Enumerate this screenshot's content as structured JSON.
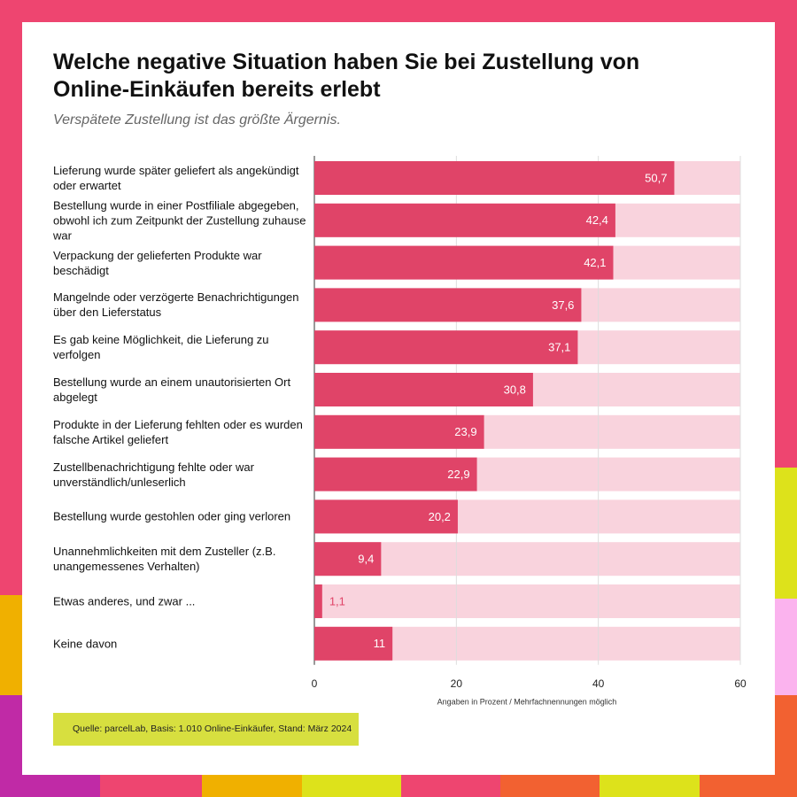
{
  "chart_data": {
    "type": "bar",
    "orientation": "horizontal",
    "title": "Welche negative Situation haben Sie bei Zustellung von Online-Einkäufen bereits erlebt",
    "subtitle": "Verspätete Zustellung ist das größte Ärgernis.",
    "categories": [
      "Lieferung wurde später geliefert als angekündigt oder erwartet",
      "Bestellung wurde in einer Postfiliale abgegeben, obwohl ich zum Zeitpunkt der Zustellung zuhause war",
      "Verpackung der gelieferten Produkte war beschädigt",
      "Mangelnde oder verzögerte Benachrichtigungen über den Lieferstatus",
      "Es gab keine Möglichkeit, die Lieferung zu verfolgen",
      "Bestellung wurde an einem unautorisierten Ort abgelegt",
      "Produkte in der Lieferung fehlten oder es wurden falsche Artikel geliefert",
      "Zustellbenachrichtigung fehlte oder war unverständlich/unleserlich",
      "Bestellung wurde gestohlen oder ging verloren",
      "Unannehmlichkeiten mit dem Zusteller (z.B. unangemessenes Verhalten)",
      "Etwas anderes, und zwar ...",
      "Keine davon"
    ],
    "values": [
      50.7,
      42.4,
      42.1,
      37.6,
      37.1,
      30.8,
      23.9,
      22.9,
      20.2,
      9.4,
      1.1,
      11
    ],
    "value_labels": [
      "50,7",
      "42,4",
      "42,1",
      "37,6",
      "37,1",
      "30,8",
      "23,9",
      "22,9",
      "20,2",
      "9,4",
      "1,1",
      "11"
    ],
    "color": "#e04468",
    "track_color": "#f9d3dd",
    "xlim": [
      0,
      60
    ],
    "xticks": [
      0,
      20,
      40,
      60
    ],
    "grid": true,
    "x_label": "Angaben in Prozent / Mehrfachnennungen möglich",
    "source": "Quelle: parcelLab, Basis: 1.010 Online-Einkäufer, Stand: März 2024"
  }
}
